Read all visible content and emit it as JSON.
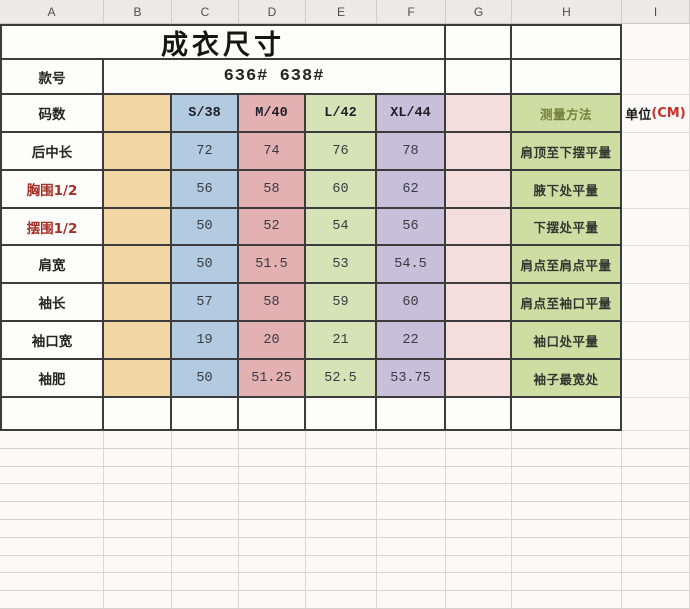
{
  "sheet": {
    "column_headers": [
      "A",
      "B",
      "C",
      "D",
      "E",
      "F",
      "G",
      "H",
      "I"
    ],
    "title": "成衣尺寸",
    "style_row": {
      "label": "款号",
      "value": "636#  638#"
    },
    "size_row": {
      "label": "码数",
      "sizes": [
        "S/38",
        "M/40",
        "L/42",
        "XL/44"
      ],
      "method_header": "测量方法",
      "unit_label": "单位",
      "unit_suffix": "(CM)"
    },
    "rows": [
      {
        "label": "后中长",
        "values": [
          "72",
          "74",
          "76",
          "78"
        ],
        "method": "肩顶至下摆平量"
      },
      {
        "label": "胸围1/2",
        "values": [
          "56",
          "58",
          "60",
          "62"
        ],
        "method": "腋下处平量"
      },
      {
        "label": "摆围1/2",
        "values": [
          "50",
          "52",
          "54",
          "56"
        ],
        "method": "下摆处平量"
      },
      {
        "label": "肩宽",
        "values": [
          "50",
          "51.5",
          "53",
          "54.5"
        ],
        "method": "肩点至肩点平量"
      },
      {
        "label": "袖长",
        "values": [
          "57",
          "58",
          "59",
          "60"
        ],
        "method": "肩点至袖口平量"
      },
      {
        "label": "袖口宽",
        "values": [
          "19",
          "20",
          "21",
          "22"
        ],
        "method": "袖口处平量"
      },
      {
        "label": "袖肥",
        "values": [
          "50",
          "51.25",
          "52.5",
          "53.75"
        ],
        "method": "袖子最宽处"
      }
    ],
    "colors": {
      "column_b_fill": "#f2d7a4",
      "size_s_fill": "#b3cbe1",
      "size_m_fill": "#e3b1b2",
      "size_l_fill": "#d6e3b6",
      "size_xl_fill": "#c8bfdb",
      "column_g_fill": "#f3dedb",
      "method_fill": "#cedda2",
      "method_header_text": "#75803b",
      "red_label_text": "#a62f26",
      "unit_cm_text": "#c9302c",
      "table_border": "#3c3c3c"
    }
  }
}
